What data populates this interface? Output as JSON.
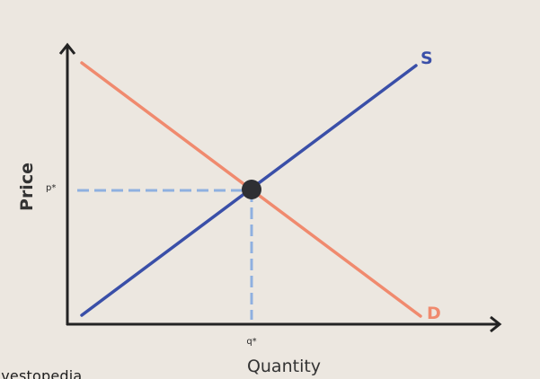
{
  "diagram": {
    "axes": {
      "x_label": "Quantity",
      "y_label": "Price"
    },
    "curves": {
      "supply": {
        "label": "S",
        "color": "#3a4fa8"
      },
      "demand": {
        "label": "D",
        "color": "#f08a6e"
      }
    },
    "equilibrium": {
      "price_label": "p*",
      "quantity_label": "q*",
      "guide_color": "#8fb0e0",
      "point_color": "#2e2f33"
    },
    "axis_color": "#232323",
    "source_watermark": "Investopedia"
  }
}
